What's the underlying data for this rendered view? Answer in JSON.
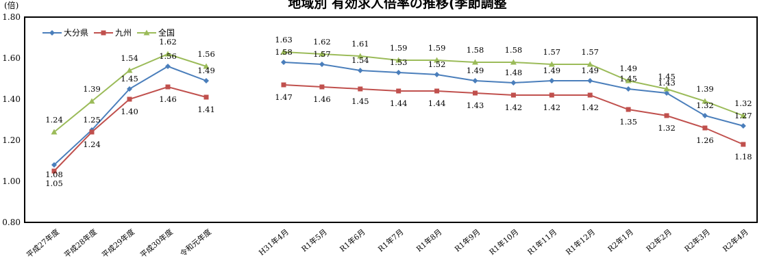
{
  "chart_data": {
    "type": "line",
    "title": "地域別 有効求人倍率の推移(季節調整",
    "ylabel": "(倍)",
    "ylim": [
      0.8,
      1.8
    ],
    "yticks": [
      "0.80",
      "1.00",
      "1.20",
      "1.40",
      "1.60",
      "1.80"
    ],
    "legend_position": "top-left",
    "grid": false,
    "categories": [
      "平成27年度",
      "平成28年度",
      "平成29年度",
      "平成30年度",
      "令和元年度",
      "H31年4月",
      "R1年5月",
      "R1年6月",
      "R1年7月",
      "R1年8月",
      "R1年9月",
      "R1年10月",
      "R1年11月",
      "R1年12月",
      "R2年1月",
      "R2年2月",
      "R2年3月",
      "R2年4月"
    ],
    "series": [
      {
        "name": "大分県",
        "color": "#4a7ebb",
        "marker": "diamond",
        "values": [
          1.08,
          1.25,
          1.45,
          1.56,
          1.49,
          1.58,
          1.57,
          1.54,
          1.53,
          1.52,
          1.49,
          1.48,
          1.49,
          1.49,
          1.45,
          1.43,
          1.32,
          1.27
        ]
      },
      {
        "name": "九州",
        "color": "#c0504d",
        "marker": "square",
        "values": [
          1.05,
          1.24,
          1.4,
          1.46,
          1.41,
          1.47,
          1.46,
          1.45,
          1.44,
          1.44,
          1.43,
          1.42,
          1.42,
          1.42,
          1.35,
          1.32,
          1.26,
          1.18
        ]
      },
      {
        "name": "全国",
        "color": "#9bbb59",
        "marker": "triangle",
        "values": [
          1.24,
          1.39,
          1.54,
          1.62,
          1.56,
          1.63,
          1.62,
          1.61,
          1.59,
          1.59,
          1.58,
          1.58,
          1.57,
          1.57,
          1.49,
          1.45,
          1.39,
          1.32
        ]
      }
    ]
  }
}
